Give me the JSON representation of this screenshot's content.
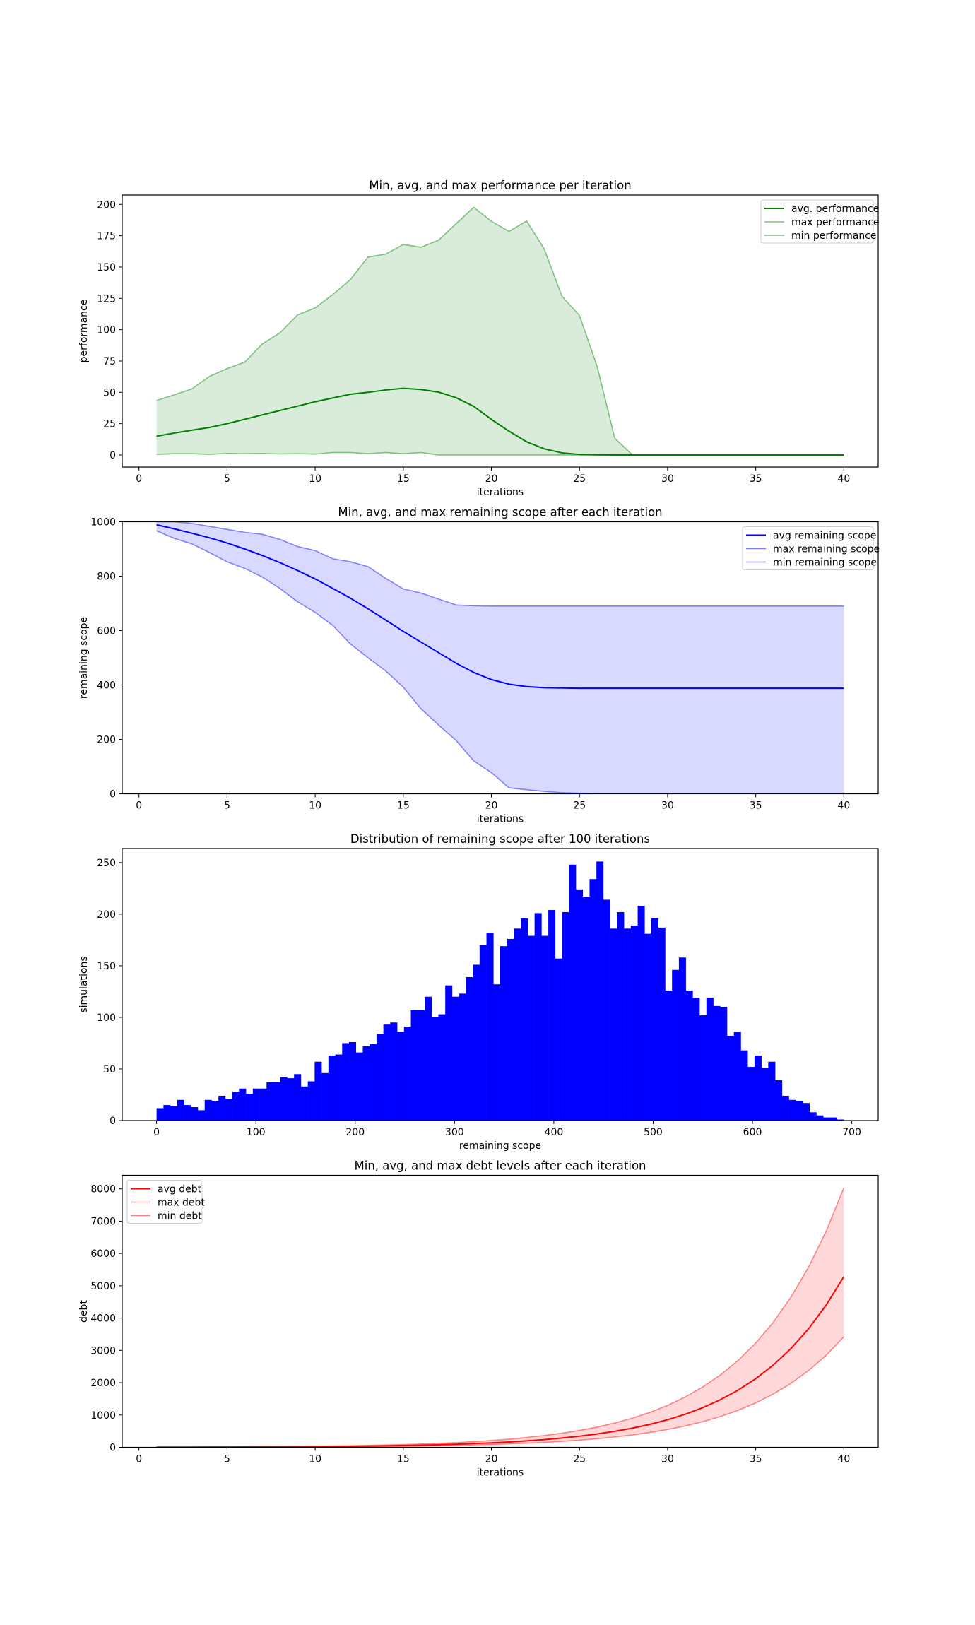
{
  "chart_data": [
    {
      "type": "line",
      "title": "Min, avg, and max performance per iteration",
      "xlabel": "iterations",
      "ylabel": "performance",
      "xlim": [
        -0.95,
        41.95
      ],
      "ylim": [
        -9.6,
        207.5
      ],
      "xticks": [
        0,
        5,
        10,
        15,
        20,
        25,
        30,
        35,
        40
      ],
      "yticks": [
        0,
        25,
        50,
        75,
        100,
        125,
        150,
        175,
        200
      ],
      "legend_position": "top-right",
      "fill_color": "#d9ecd9",
      "x": [
        1,
        2,
        3,
        4,
        5,
        6,
        7,
        8,
        9,
        10,
        11,
        12,
        13,
        14,
        15,
        16,
        17,
        18,
        19,
        20,
        21,
        22,
        23,
        24,
        25,
        26,
        27,
        28,
        29,
        30,
        31,
        32,
        33,
        34,
        35,
        36,
        37,
        38,
        39,
        40
      ],
      "series": [
        {
          "name": "avg. performance",
          "color": "#008000",
          "width": 2,
          "values": [
            15,
            17.5,
            19.8,
            22,
            25,
            28.5,
            32,
            35.5,
            39,
            42.5,
            45.5,
            48.5,
            50,
            51.9,
            53.2,
            52.3,
            50.2,
            45.7,
            38.8,
            28.4,
            19,
            10.5,
            4.9,
            1.7,
            0.4,
            0.1,
            0,
            0,
            0,
            0,
            0,
            0,
            0,
            0,
            0,
            0,
            0,
            0,
            0,
            0
          ]
        },
        {
          "name": "max performance",
          "color": "#7fbf7f",
          "width": 1.6,
          "values": [
            43.5,
            48,
            52.7,
            62.7,
            68.9,
            74.1,
            88.6,
            97.5,
            111.8,
            117.4,
            128.1,
            140,
            158,
            160.3,
            168,
            165.8,
            171.4,
            184.6,
            197.7,
            186.5,
            178.4,
            186.8,
            164.3,
            126.8,
            111.2,
            70.7,
            13.4,
            0,
            0,
            0,
            0,
            0,
            0,
            0,
            0,
            0,
            0,
            0,
            0,
            0
          ]
        },
        {
          "name": "min performance",
          "color": "#7fbf7f",
          "width": 1.6,
          "values": [
            0.5,
            1,
            1,
            0.5,
            1.2,
            1,
            1.2,
            0.8,
            1,
            0.7,
            2,
            2,
            1,
            2,
            1,
            2,
            0,
            0,
            0,
            0,
            0,
            0,
            0,
            0,
            0,
            0,
            0,
            0,
            0,
            0,
            0,
            0,
            0,
            0,
            0,
            0,
            0,
            0,
            0,
            0
          ]
        }
      ]
    },
    {
      "type": "line",
      "title": "Min, avg, and max remaining scope after each iteration",
      "xlabel": "iterations",
      "ylabel": "remaining scope",
      "xlim": [
        -0.95,
        41.95
      ],
      "ylim": [
        0,
        1000
      ],
      "xticks": [
        0,
        5,
        10,
        15,
        20,
        25,
        30,
        35,
        40
      ],
      "yticks": [
        0,
        200,
        400,
        600,
        800,
        1000
      ],
      "legend_position": "top-right",
      "fill_color": "#d9d9ff",
      "x": [
        1,
        2,
        3,
        4,
        5,
        6,
        7,
        8,
        9,
        10,
        11,
        12,
        13,
        14,
        15,
        16,
        17,
        18,
        19,
        20,
        21,
        22,
        23,
        24,
        25,
        26,
        27,
        28,
        29,
        30,
        31,
        32,
        33,
        34,
        35,
        36,
        37,
        38,
        39,
        40
      ],
      "series": [
        {
          "name": "avg remaining scope",
          "color": "#0000ff",
          "width": 2,
          "values": [
            989,
            974,
            958,
            941,
            922,
            900,
            876,
            850,
            821,
            790,
            755,
            719,
            680,
            639,
            597,
            558,
            519,
            480,
            446,
            420,
            403,
            394,
            390,
            389,
            388,
            388,
            388,
            388,
            388,
            388,
            388,
            388,
            388,
            388,
            388,
            388,
            388,
            388,
            388,
            388
          ]
        },
        {
          "name": "max remaining scope",
          "color": "#8080ff",
          "width": 1.6,
          "values": [
            1000,
            1000,
            994,
            983,
            972,
            961,
            954,
            935,
            909,
            894,
            864,
            853,
            835,
            792,
            753,
            738,
            716,
            694,
            691,
            690,
            690,
            690,
            690,
            690,
            690,
            690,
            690,
            690,
            690,
            690,
            690,
            690,
            690,
            690,
            690,
            690,
            690,
            690,
            690,
            690
          ]
        },
        {
          "name": "min remaining scope",
          "color": "#8080ff",
          "width": 1.6,
          "values": [
            967,
            939,
            919,
            887,
            853,
            829,
            797,
            755,
            706,
            667,
            619,
            551,
            500,
            452,
            392,
            313,
            253,
            196,
            121,
            78,
            22,
            15,
            9,
            4,
            2,
            0,
            0,
            0,
            0,
            0,
            0,
            0,
            0,
            0,
            0,
            0,
            0,
            0,
            0,
            0
          ]
        }
      ]
    },
    {
      "type": "bar",
      "title": "Distribution of remaining scope after 100 iterations",
      "xlabel": "remaining scope",
      "ylabel": "simulations",
      "xlim": [
        -34.6,
        726.6
      ],
      "ylim": [
        0,
        263.6
      ],
      "xticks": [
        0,
        100,
        200,
        300,
        400,
        500,
        600,
        700
      ],
      "yticks": [
        0,
        50,
        100,
        150,
        200,
        250
      ],
      "color": "#0000ff",
      "bin_start": 0,
      "bin_width": 6.92,
      "values": [
        12,
        15,
        14,
        20,
        15,
        13,
        10,
        20,
        19,
        24,
        21,
        28,
        31,
        26,
        31,
        31,
        37,
        37,
        42,
        41,
        45,
        33,
        38,
        57,
        46,
        63,
        64,
        75,
        76,
        66,
        72,
        74,
        84,
        93,
        95,
        86,
        91,
        107,
        107,
        120,
        100,
        103,
        131,
        120,
        123,
        139,
        151,
        170,
        182,
        132,
        169,
        176,
        186,
        196,
        179,
        201,
        179,
        204,
        157,
        202,
        248,
        224,
        217,
        234,
        251,
        214,
        186,
        202,
        186,
        189,
        208,
        181,
        196,
        187,
        126,
        146,
        158,
        126,
        119,
        102,
        119,
        111,
        110,
        82,
        86,
        68,
        52,
        63,
        51,
        57,
        39,
        24,
        20,
        19,
        17,
        8,
        5,
        3,
        3,
        1
      ]
    },
    {
      "type": "line",
      "title": "Min, avg, and max debt levels after each iteration",
      "xlabel": "iterations",
      "ylabel": "debt",
      "xlim": [
        -0.95,
        41.95
      ],
      "ylim": [
        0,
        8420
      ],
      "xticks": [
        0,
        5,
        10,
        15,
        20,
        25,
        30,
        35,
        40
      ],
      "yticks": [
        0,
        1000,
        2000,
        3000,
        4000,
        5000,
        6000,
        7000,
        8000
      ],
      "legend_position": "top-left",
      "fill_color": "#ffd9d9",
      "x": [
        1,
        2,
        3,
        4,
        5,
        6,
        7,
        8,
        9,
        10,
        11,
        12,
        13,
        14,
        15,
        16,
        17,
        18,
        19,
        20,
        21,
        22,
        23,
        24,
        25,
        26,
        27,
        28,
        29,
        30,
        31,
        32,
        33,
        34,
        35,
        36,
        37,
        38,
        39,
        40
      ],
      "series": [
        {
          "name": "avg debt",
          "color": "#ff0000",
          "width": 2,
          "values": [
            4.3,
            5.2,
            6.2,
            7.4,
            8.9,
            10.7,
            12.8,
            15.4,
            18.5,
            22,
            27,
            32,
            38,
            46,
            55,
            66,
            80,
            96,
            115,
            138,
            165,
            199,
            238,
            286,
            343,
            412,
            494,
            593,
            711,
            854,
            1024,
            1229,
            1475,
            1770,
            2124,
            2549,
            3058,
            3670,
            4404,
            5285
          ]
        },
        {
          "name": "max debt",
          "color": "#ff8080",
          "width": 1.6,
          "values": [
            6.5,
            7.9,
            9.4,
            11.3,
            13.6,
            16,
            19.5,
            23,
            28,
            34,
            40,
            49,
            58,
            70,
            84,
            101,
            121,
            145,
            174,
            209,
            251,
            302,
            362,
            434,
            521,
            625,
            751,
            901,
            1081,
            1297,
            1556,
            1868,
            2241,
            2689,
            3227,
            3872,
            4647,
            5576,
            6691,
            8030
          ]
        },
        {
          "name": "min debt",
          "color": "#ff8080",
          "width": 1.6,
          "values": [
            2.8,
            3.3,
            4,
            4.8,
            5.8,
            6.9,
            8.3,
            10,
            12,
            14.4,
            17.3,
            21,
            25,
            30,
            36,
            43,
            52,
            62,
            74,
            89,
            107,
            129,
            154,
            185,
            222,
            267,
            320,
            384,
            461,
            553,
            663,
            796,
            955,
            1146,
            1376,
            1651,
            1981,
            2377,
            2852,
            3423
          ]
        }
      ]
    }
  ]
}
